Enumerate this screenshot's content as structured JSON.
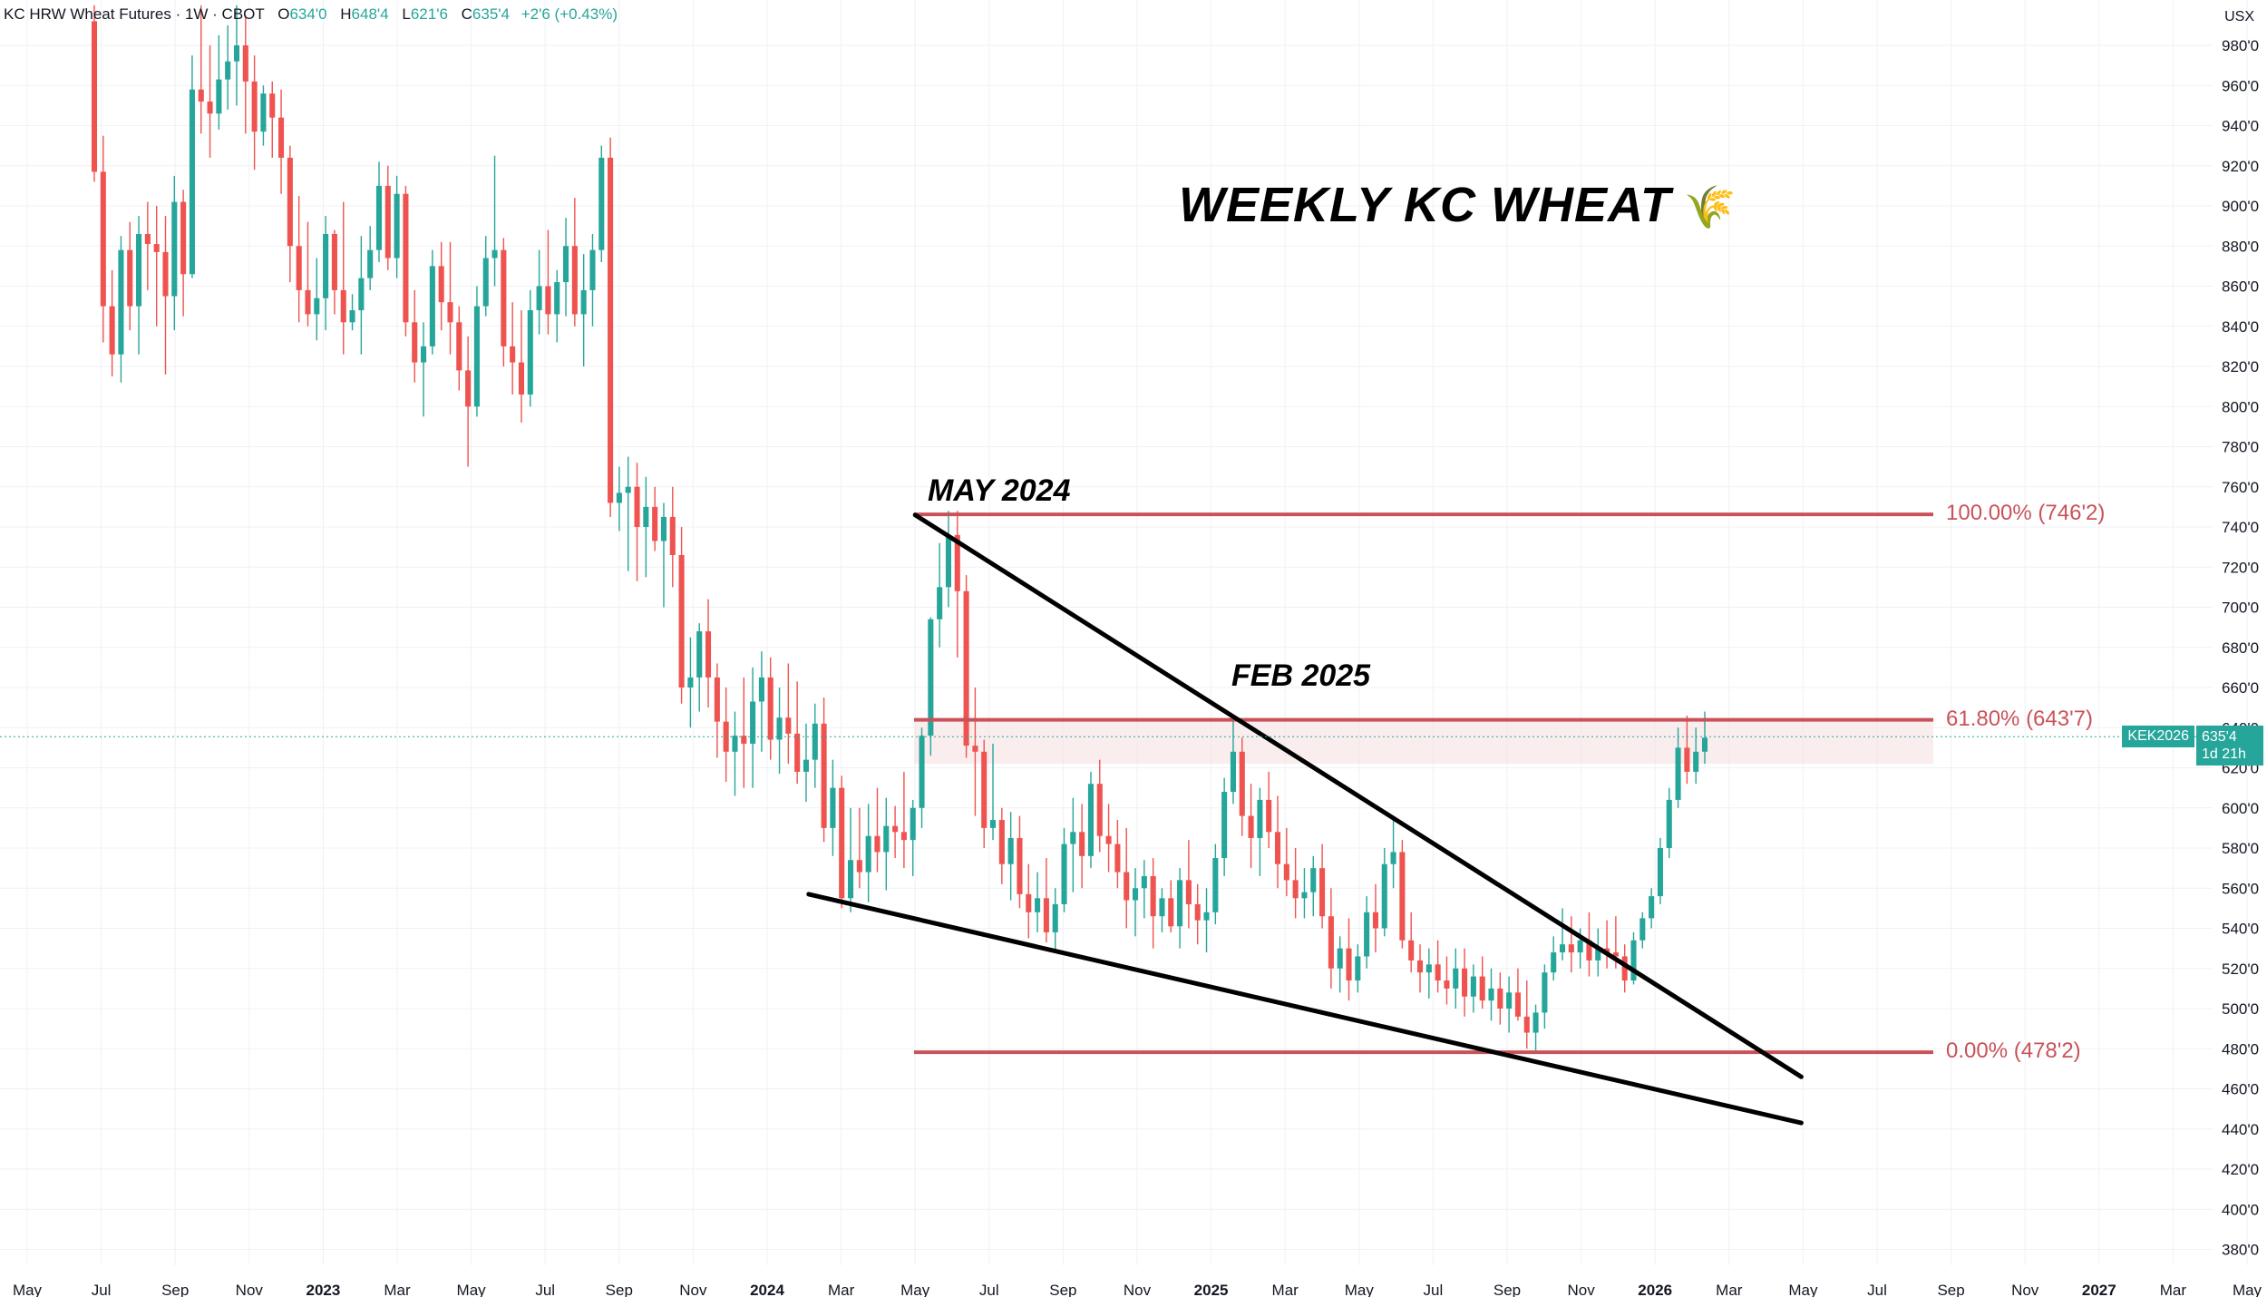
{
  "header": {
    "symbol": "KC HRW Wheat Futures · 1W · CBOT",
    "open_label": "O",
    "open": "634'0",
    "high_label": "H",
    "high": "648'4",
    "low_label": "L",
    "low": "621'6",
    "close_label": "C",
    "close": "635'4",
    "change": "+2'6 (+0.43%)"
  },
  "unit": "USX",
  "title": "WEEKLY KC WHEAT",
  "title_icon": "wheat-icon",
  "annotations": [
    {
      "label": "MAY 2024",
      "price": 746.25
    },
    {
      "label": "FEB 2025",
      "price": 643.875
    }
  ],
  "fib_levels": [
    {
      "label": "100.00% (746'2)",
      "price": 746.25
    },
    {
      "label": "61.80% (643'7)",
      "price": 643.875
    },
    {
      "label": "0.00% (478'2)",
      "price": 478.25
    }
  ],
  "last_price": {
    "ticker": "KEK2026",
    "price": "635'4",
    "countdown": "1d 21h",
    "value": 635.5
  },
  "colors": {
    "up": "#26a69a",
    "down": "#ef5350",
    "fib": "#c9525a",
    "trend": "#000000"
  },
  "chart_data": {
    "type": "candlestick",
    "y_range": [
      370,
      1000
    ],
    "y_ticks": [
      "980'0",
      "960'0",
      "940'0",
      "920'0",
      "900'0",
      "880'0",
      "860'0",
      "840'0",
      "820'0",
      "800'0",
      "780'0",
      "760'0",
      "740'0",
      "720'0",
      "700'0",
      "680'0",
      "660'0",
      "640'0",
      "620'0",
      "600'0",
      "580'0",
      "560'0",
      "540'0",
      "520'0",
      "500'0",
      "480'0",
      "460'0",
      "440'0",
      "420'0",
      "400'0",
      "380'0"
    ],
    "y_tick_values": [
      980,
      960,
      940,
      920,
      900,
      880,
      860,
      840,
      820,
      800,
      780,
      760,
      740,
      720,
      700,
      680,
      660,
      640,
      620,
      600,
      580,
      560,
      540,
      520,
      500,
      480,
      460,
      440,
      420,
      400,
      380
    ],
    "x_ticks": [
      {
        "label": "May",
        "t": 0,
        "bold": false
      },
      {
        "label": "Jul",
        "t": 2,
        "bold": false
      },
      {
        "label": "Sep",
        "t": 4,
        "bold": false
      },
      {
        "label": "Nov",
        "t": 6,
        "bold": false
      },
      {
        "label": "2023",
        "t": 8,
        "bold": true
      },
      {
        "label": "Mar",
        "t": 10,
        "bold": false
      },
      {
        "label": "May",
        "t": 12,
        "bold": false
      },
      {
        "label": "Jul",
        "t": 14,
        "bold": false
      },
      {
        "label": "Sep",
        "t": 16,
        "bold": false
      },
      {
        "label": "Nov",
        "t": 18,
        "bold": false
      },
      {
        "label": "2024",
        "t": 20,
        "bold": true
      },
      {
        "label": "Mar",
        "t": 22,
        "bold": false
      },
      {
        "label": "May",
        "t": 24,
        "bold": false
      },
      {
        "label": "Jul",
        "t": 26,
        "bold": false
      },
      {
        "label": "Sep",
        "t": 28,
        "bold": false
      },
      {
        "label": "Nov",
        "t": 30,
        "bold": false
      },
      {
        "label": "2025",
        "t": 32,
        "bold": true
      },
      {
        "label": "Mar",
        "t": 34,
        "bold": false
      },
      {
        "label": "May",
        "t": 36,
        "bold": false
      },
      {
        "label": "Jul",
        "t": 38,
        "bold": false
      },
      {
        "label": "Sep",
        "t": 40,
        "bold": false
      },
      {
        "label": "Nov",
        "t": 42,
        "bold": false
      },
      {
        "label": "2026",
        "t": 44,
        "bold": true
      },
      {
        "label": "Mar",
        "t": 46,
        "bold": false
      },
      {
        "label": "May",
        "t": 48,
        "bold": false
      },
      {
        "label": "Jul",
        "t": 50,
        "bold": false
      },
      {
        "label": "Sep",
        "t": 52,
        "bold": false
      },
      {
        "label": "Nov",
        "t": 54,
        "bold": false
      },
      {
        "label": "2027",
        "t": 56,
        "bold": true
      },
      {
        "label": "Mar",
        "t": 58,
        "bold": false
      },
      {
        "label": "May",
        "t": 60,
        "bold": false
      }
    ],
    "trendlines": [
      {
        "from": [
          "2024-05",
          746
        ],
        "to": [
          "2026-05",
          466
        ]
      },
      {
        "from": [
          "2024-02",
          557
        ],
        "to": [
          "2026-05",
          443
        ]
      }
    ],
    "candles": [
      [
        992,
        1000,
        912,
        917
      ],
      [
        917,
        935,
        832,
        850
      ],
      [
        850,
        868,
        815,
        826
      ],
      [
        826,
        885,
        812,
        878
      ],
      [
        878,
        892,
        838,
        850
      ],
      [
        850,
        895,
        826,
        886
      ],
      [
        886,
        902,
        858,
        881
      ],
      [
        881,
        900,
        840,
        877
      ],
      [
        877,
        895,
        816,
        855
      ],
      [
        855,
        915,
        838,
        902
      ],
      [
        902,
        908,
        845,
        866
      ],
      [
        866,
        975,
        864,
        958
      ],
      [
        958,
        1000,
        936,
        952
      ],
      [
        952,
        980,
        924,
        946
      ],
      [
        946,
        985,
        938,
        963
      ],
      [
        963,
        990,
        948,
        972
      ],
      [
        972,
        1000,
        950,
        980
      ],
      [
        980,
        995,
        936,
        962
      ],
      [
        962,
        975,
        918,
        937
      ],
      [
        937,
        960,
        930,
        956
      ],
      [
        956,
        962,
        924,
        944
      ],
      [
        944,
        958,
        906,
        924
      ],
      [
        924,
        930,
        862,
        880
      ],
      [
        880,
        905,
        842,
        858
      ],
      [
        858,
        892,
        840,
        846
      ],
      [
        846,
        874,
        833,
        854
      ],
      [
        854,
        895,
        838,
        886
      ],
      [
        886,
        888,
        846,
        858
      ],
      [
        858,
        902,
        826,
        842
      ],
      [
        842,
        856,
        838,
        848
      ],
      [
        848,
        885,
        826,
        864
      ],
      [
        864,
        890,
        858,
        878
      ],
      [
        878,
        922,
        872,
        910
      ],
      [
        910,
        920,
        868,
        874
      ],
      [
        874,
        915,
        864,
        906
      ],
      [
        906,
        910,
        835,
        842
      ],
      [
        842,
        858,
        812,
        822
      ],
      [
        822,
        842,
        795,
        830
      ],
      [
        830,
        878,
        826,
        870
      ],
      [
        870,
        882,
        838,
        852
      ],
      [
        852,
        882,
        826,
        842
      ],
      [
        842,
        850,
        808,
        818
      ],
      [
        818,
        835,
        770,
        800
      ],
      [
        800,
        860,
        795,
        850
      ],
      [
        850,
        885,
        845,
        874
      ],
      [
        874,
        925,
        860,
        878
      ],
      [
        878,
        884,
        820,
        830
      ],
      [
        830,
        852,
        806,
        822
      ],
      [
        822,
        848,
        792,
        806
      ],
      [
        806,
        858,
        800,
        848
      ],
      [
        848,
        878,
        836,
        860
      ],
      [
        860,
        888,
        836,
        846
      ],
      [
        846,
        868,
        832,
        862
      ],
      [
        862,
        894,
        845,
        880
      ],
      [
        880,
        904,
        840,
        846
      ],
      [
        846,
        876,
        820,
        858
      ],
      [
        858,
        886,
        840,
        878
      ],
      [
        878,
        930,
        872,
        924
      ],
      [
        924,
        934,
        745,
        752
      ],
      [
        752,
        770,
        738,
        757
      ],
      [
        757,
        775,
        718,
        760
      ],
      [
        760,
        772,
        713,
        740
      ],
      [
        740,
        765,
        715,
        750
      ],
      [
        750,
        760,
        728,
        733
      ],
      [
        733,
        752,
        700,
        745
      ],
      [
        745,
        760,
        710,
        726
      ],
      [
        726,
        740,
        652,
        660
      ],
      [
        660,
        685,
        640,
        665
      ],
      [
        665,
        692,
        648,
        688
      ],
      [
        688,
        704,
        650,
        665
      ],
      [
        665,
        672,
        625,
        643
      ],
      [
        643,
        660,
        613,
        628
      ],
      [
        628,
        648,
        606,
        636
      ],
      [
        636,
        665,
        610,
        632
      ],
      [
        632,
        670,
        610,
        653
      ],
      [
        653,
        678,
        628,
        665
      ],
      [
        665,
        675,
        624,
        634
      ],
      [
        634,
        660,
        617,
        645
      ],
      [
        645,
        672,
        622,
        637
      ],
      [
        637,
        663,
        612,
        618
      ],
      [
        618,
        642,
        603,
        624
      ],
      [
        624,
        652,
        610,
        642
      ],
      [
        642,
        655,
        583,
        590
      ],
      [
        590,
        624,
        576,
        610
      ],
      [
        610,
        616,
        550,
        555
      ],
      [
        555,
        600,
        548,
        574
      ],
      [
        574,
        600,
        560,
        568
      ],
      [
        568,
        602,
        553,
        586
      ],
      [
        586,
        610,
        568,
        578
      ],
      [
        578,
        605,
        559,
        591
      ],
      [
        591,
        601,
        575,
        588
      ],
      [
        588,
        618,
        570,
        584
      ],
      [
        584,
        604,
        566,
        600
      ],
      [
        600,
        640,
        590,
        636
      ],
      [
        636,
        695,
        626,
        694
      ],
      [
        694,
        732,
        680,
        710
      ],
      [
        710,
        748,
        700,
        736
      ],
      [
        736,
        748,
        675,
        708
      ],
      [
        708,
        716,
        625,
        631
      ],
      [
        631,
        660,
        596,
        628
      ],
      [
        628,
        634,
        580,
        590
      ],
      [
        590,
        632,
        584,
        594
      ],
      [
        594,
        600,
        562,
        572
      ],
      [
        572,
        598,
        554,
        585
      ],
      [
        585,
        596,
        550,
        557
      ],
      [
        557,
        572,
        535,
        548
      ],
      [
        548,
        568,
        538,
        555
      ],
      [
        555,
        575,
        533,
        538
      ],
      [
        538,
        560,
        528,
        552
      ],
      [
        552,
        590,
        548,
        582
      ],
      [
        582,
        605,
        558,
        588
      ],
      [
        588,
        602,
        560,
        576
      ],
      [
        576,
        618,
        570,
        612
      ],
      [
        612,
        624,
        578,
        586
      ],
      [
        586,
        602,
        568,
        582
      ],
      [
        582,
        594,
        560,
        568
      ],
      [
        568,
        590,
        540,
        554
      ],
      [
        554,
        570,
        536,
        560
      ],
      [
        560,
        574,
        545,
        566
      ],
      [
        566,
        575,
        530,
        546
      ],
      [
        546,
        560,
        538,
        555
      ],
      [
        555,
        564,
        538,
        541
      ],
      [
        541,
        570,
        530,
        564
      ],
      [
        564,
        584,
        540,
        552
      ],
      [
        552,
        562,
        532,
        544
      ],
      [
        544,
        560,
        528,
        548
      ],
      [
        548,
        582,
        542,
        575
      ],
      [
        575,
        615,
        566,
        608
      ],
      [
        608,
        646,
        602,
        628
      ],
      [
        628,
        635,
        586,
        596
      ],
      [
        596,
        612,
        570,
        585
      ],
      [
        585,
        610,
        566,
        604
      ],
      [
        604,
        618,
        580,
        588
      ],
      [
        588,
        606,
        560,
        572
      ],
      [
        572,
        590,
        556,
        564
      ],
      [
        564,
        580,
        545,
        555
      ],
      [
        555,
        570,
        545,
        558
      ],
      [
        558,
        576,
        546,
        570
      ],
      [
        570,
        582,
        540,
        546
      ],
      [
        546,
        560,
        510,
        520
      ],
      [
        520,
        536,
        508,
        530
      ],
      [
        530,
        545,
        504,
        514
      ],
      [
        514,
        532,
        508,
        526
      ],
      [
        526,
        556,
        520,
        548
      ],
      [
        548,
        562,
        528,
        540
      ],
      [
        540,
        580,
        536,
        572
      ],
      [
        572,
        594,
        560,
        578
      ],
      [
        578,
        584,
        530,
        534
      ],
      [
        534,
        548,
        518,
        524
      ],
      [
        524,
        532,
        508,
        518
      ],
      [
        518,
        530,
        505,
        522
      ],
      [
        522,
        534,
        508,
        514
      ],
      [
        514,
        526,
        502,
        510
      ],
      [
        510,
        530,
        500,
        520
      ],
      [
        520,
        530,
        496,
        506
      ],
      [
        506,
        522,
        498,
        516
      ],
      [
        516,
        526,
        500,
        504
      ],
      [
        504,
        520,
        494,
        510
      ],
      [
        510,
        518,
        492,
        500
      ],
      [
        500,
        516,
        488,
        508
      ],
      [
        508,
        520,
        494,
        496
      ],
      [
        496,
        514,
        480,
        488
      ],
      [
        488,
        502,
        478,
        498
      ],
      [
        498,
        522,
        490,
        518
      ],
      [
        518,
        536,
        514,
        528
      ],
      [
        528,
        550,
        524,
        532
      ],
      [
        532,
        546,
        518,
        528
      ],
      [
        528,
        540,
        520,
        534
      ],
      [
        534,
        548,
        516,
        524
      ],
      [
        524,
        540,
        516,
        530
      ],
      [
        530,
        544,
        520,
        528
      ],
      [
        528,
        546,
        520,
        526
      ],
      [
        526,
        532,
        508,
        514
      ],
      [
        514,
        538,
        512,
        534
      ],
      [
        534,
        548,
        530,
        545
      ],
      [
        545,
        560,
        540,
        556
      ],
      [
        556,
        585,
        552,
        580
      ],
      [
        580,
        610,
        575,
        604
      ],
      [
        604,
        640,
        600,
        630
      ],
      [
        630,
        646,
        612,
        618
      ],
      [
        618,
        640,
        612,
        628
      ],
      [
        628,
        648,
        622,
        635
      ]
    ]
  }
}
